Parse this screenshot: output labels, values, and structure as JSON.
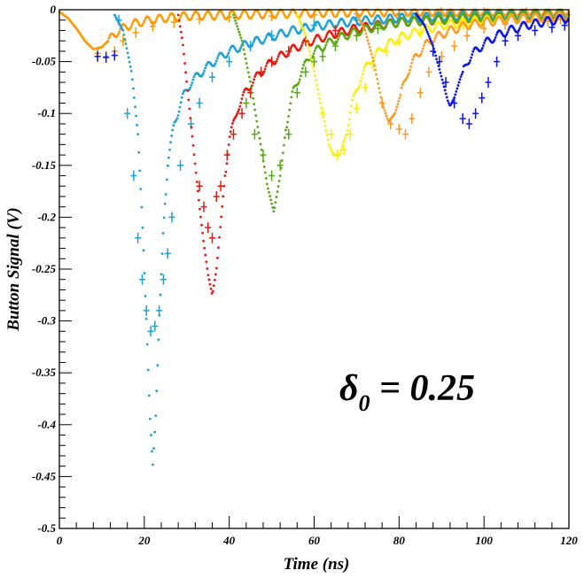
{
  "chart_data": {
    "type": "scatter",
    "title": "",
    "xlabel": "Time (ns)",
    "ylabel": "Button Signal (V)",
    "xlim": [
      0,
      120
    ],
    "ylim": [
      -0.5,
      0
    ],
    "x_ticks": [
      0,
      20,
      40,
      60,
      80,
      100,
      120
    ],
    "x_tick_labels": [
      "0",
      "20",
      "40",
      "60",
      "80",
      "100",
      "120"
    ],
    "y_ticks": [
      0,
      -0.05,
      -0.1,
      -0.15,
      -0.2,
      -0.25,
      -0.3,
      -0.35,
      -0.4,
      -0.45,
      -0.5
    ],
    "y_tick_labels": [
      "0",
      "-0.05",
      "-0.1",
      "-0.15",
      "-0.2",
      "-0.25",
      "-0.3",
      "-0.35",
      "-0.4",
      "-0.45",
      "-0.5"
    ],
    "grid": false,
    "legend": "none",
    "annotation": {
      "symbol": "δ",
      "subscript": "0",
      "text": " = 0.25"
    },
    "series": [
      {
        "color": "#ff9900",
        "peak_x": 8.5,
        "peak_y": -0.038,
        "start_x": 0,
        "curve": [
          [
            0,
            -0.002
          ],
          [
            2,
            -0.008
          ],
          [
            4,
            -0.018
          ],
          [
            6,
            -0.03
          ],
          [
            8,
            -0.038
          ],
          [
            10,
            -0.036
          ],
          [
            12,
            -0.028
          ],
          [
            14,
            -0.02
          ],
          [
            17,
            -0.014
          ],
          [
            20,
            -0.011
          ],
          [
            25,
            -0.008
          ],
          [
            30,
            -0.006
          ],
          [
            40,
            -0.005
          ],
          [
            50,
            -0.004
          ],
          [
            60,
            -0.003
          ],
          [
            80,
            -0.002
          ],
          [
            100,
            -0.002
          ],
          [
            120,
            -0.001
          ]
        ],
        "measured": [
          [
            9,
            -0.042
          ],
          [
            11,
            -0.045
          ],
          [
            13,
            -0.04
          ],
          [
            15,
            -0.03
          ],
          [
            18,
            -0.022
          ],
          [
            22,
            -0.016
          ],
          [
            27,
            -0.012
          ],
          [
            33,
            -0.009
          ],
          [
            40,
            -0.007
          ],
          [
            50,
            -0.006
          ],
          [
            60,
            -0.005
          ],
          [
            70,
            -0.004
          ],
          [
            80,
            -0.004
          ],
          [
            90,
            -0.003
          ],
          [
            100,
            -0.003
          ],
          [
            110,
            -0.003
          ],
          [
            118,
            -0.004
          ]
        ]
      },
      {
        "color": "#1ba1d6",
        "peak_x": 22,
        "peak_y": -0.44,
        "start_x": 13,
        "curve": [
          [
            13,
            -0.005
          ],
          [
            15,
            -0.02
          ],
          [
            17,
            -0.06
          ],
          [
            18.5,
            -0.12
          ],
          [
            19.5,
            -0.2
          ],
          [
            20.5,
            -0.3
          ],
          [
            21.3,
            -0.39
          ],
          [
            22,
            -0.44
          ],
          [
            22.7,
            -0.39
          ],
          [
            23.5,
            -0.3
          ],
          [
            24.5,
            -0.21
          ],
          [
            25.5,
            -0.15
          ],
          [
            27,
            -0.11
          ],
          [
            29,
            -0.085
          ],
          [
            31,
            -0.07
          ],
          [
            34,
            -0.058
          ],
          [
            37,
            -0.048
          ],
          [
            40,
            -0.04
          ],
          [
            45,
            -0.032
          ],
          [
            50,
            -0.026
          ],
          [
            55,
            -0.02
          ],
          [
            60,
            -0.016
          ],
          [
            70,
            -0.011
          ],
          [
            80,
            -0.008
          ],
          [
            100,
            -0.005
          ],
          [
            120,
            -0.004
          ]
        ],
        "measured": [
          [
            14,
            -0.01
          ],
          [
            16,
            -0.1
          ],
          [
            17.5,
            -0.16
          ],
          [
            18.5,
            -0.22
          ],
          [
            19.5,
            -0.26
          ],
          [
            20.5,
            -0.29
          ],
          [
            21.5,
            -0.31
          ],
          [
            22.5,
            -0.305
          ],
          [
            23.5,
            -0.29
          ],
          [
            24.5,
            -0.26
          ],
          [
            25.5,
            -0.235
          ],
          [
            26.5,
            -0.2
          ],
          [
            28.5,
            -0.15
          ],
          [
            31,
            -0.11
          ],
          [
            33,
            -0.09
          ],
          [
            36,
            -0.065
          ],
          [
            40,
            -0.05
          ],
          [
            45,
            -0.035
          ],
          [
            50,
            -0.025
          ],
          [
            60,
            -0.015
          ],
          [
            70,
            -0.01
          ],
          [
            80,
            -0.008
          ]
        ]
      },
      {
        "color": "#e8170c",
        "peak_x": 36,
        "peak_y": -0.275,
        "start_x": 28,
        "curve": [
          [
            28,
            -0.005
          ],
          [
            29,
            -0.03
          ],
          [
            30,
            -0.07
          ],
          [
            31,
            -0.11
          ],
          [
            32,
            -0.15
          ],
          [
            33,
            -0.19
          ],
          [
            34,
            -0.225
          ],
          [
            35,
            -0.255
          ],
          [
            36,
            -0.275
          ],
          [
            37,
            -0.25
          ],
          [
            38,
            -0.205
          ],
          [
            39,
            -0.16
          ],
          [
            40,
            -0.125
          ],
          [
            42,
            -0.095
          ],
          [
            44,
            -0.078
          ],
          [
            47,
            -0.062
          ],
          [
            50,
            -0.05
          ],
          [
            54,
            -0.04
          ],
          [
            58,
            -0.032
          ],
          [
            64,
            -0.024
          ],
          [
            70,
            -0.018
          ],
          [
            80,
            -0.012
          ],
          [
            100,
            -0.007
          ],
          [
            120,
            -0.005
          ]
        ],
        "measured": [
          [
            33,
            -0.17
          ],
          [
            34,
            -0.19
          ],
          [
            35,
            -0.21
          ],
          [
            36,
            -0.22
          ],
          [
            37,
            -0.18
          ],
          [
            38,
            -0.17
          ],
          [
            39.5,
            -0.14
          ],
          [
            41,
            -0.12
          ],
          [
            43,
            -0.1
          ],
          [
            45,
            -0.08
          ],
          [
            47.5,
            -0.06
          ],
          [
            50,
            -0.05
          ],
          [
            54,
            -0.04
          ],
          [
            58,
            -0.03
          ],
          [
            65,
            -0.02
          ],
          [
            75,
            -0.015
          ]
        ]
      },
      {
        "color": "#55aa11",
        "peak_x": 50.5,
        "peak_y": -0.195,
        "start_x": 41,
        "curve": [
          [
            41,
            -0.005
          ],
          [
            43,
            -0.03
          ],
          [
            45,
            -0.07
          ],
          [
            47,
            -0.12
          ],
          [
            49,
            -0.17
          ],
          [
            50.5,
            -0.195
          ],
          [
            52,
            -0.16
          ],
          [
            53.5,
            -0.11
          ],
          [
            55,
            -0.08
          ],
          [
            57,
            -0.06
          ],
          [
            59,
            -0.045
          ],
          [
            61,
            -0.038
          ],
          [
            63,
            -0.033
          ],
          [
            66,
            -0.027
          ],
          [
            70,
            -0.021
          ],
          [
            75,
            -0.016
          ],
          [
            80,
            -0.012
          ],
          [
            90,
            -0.009
          ],
          [
            100,
            -0.007
          ],
          [
            120,
            -0.005
          ]
        ],
        "measured": [
          [
            44,
            -0.09
          ],
          [
            46,
            -0.12
          ],
          [
            48,
            -0.14
          ],
          [
            50,
            -0.16
          ],
          [
            52,
            -0.15
          ],
          [
            54,
            -0.12
          ],
          [
            56,
            -0.08
          ],
          [
            58,
            -0.06
          ],
          [
            60,
            -0.05
          ],
          [
            62,
            -0.045
          ],
          [
            65,
            -0.035
          ],
          [
            70,
            -0.025
          ],
          [
            75,
            -0.018
          ]
        ]
      },
      {
        "color": "#ffee00",
        "peak_x": 64.5,
        "peak_y": -0.14,
        "start_x": 56,
        "curve": [
          [
            56,
            -0.005
          ],
          [
            58,
            -0.025
          ],
          [
            60,
            -0.06
          ],
          [
            62,
            -0.1
          ],
          [
            63.5,
            -0.13
          ],
          [
            64.5,
            -0.14
          ],
          [
            66,
            -0.14
          ],
          [
            67.5,
            -0.12
          ],
          [
            69,
            -0.09
          ],
          [
            71,
            -0.065
          ],
          [
            73,
            -0.05
          ],
          [
            76,
            -0.037
          ],
          [
            80,
            -0.027
          ],
          [
            85,
            -0.02
          ],
          [
            90,
            -0.015
          ],
          [
            100,
            -0.01
          ],
          [
            120,
            -0.006
          ]
        ],
        "measured": [
          [
            62,
            -0.1
          ],
          [
            64,
            -0.12
          ],
          [
            65.5,
            -0.14
          ],
          [
            67,
            -0.135
          ],
          [
            68.5,
            -0.12
          ],
          [
            70,
            -0.095
          ],
          [
            72,
            -0.075
          ],
          [
            74,
            -0.055
          ],
          [
            77,
            -0.04
          ],
          [
            80,
            -0.03
          ],
          [
            85,
            -0.022
          ],
          [
            95,
            -0.014
          ]
        ]
      },
      {
        "color": "#ff9922",
        "peak_x": 77.5,
        "peak_y": -0.108,
        "start_x": 70,
        "curve": [
          [
            70,
            -0.004
          ],
          [
            72,
            -0.02
          ],
          [
            74,
            -0.05
          ],
          [
            76,
            -0.09
          ],
          [
            77.5,
            -0.108
          ],
          [
            79,
            -0.1
          ],
          [
            80.5,
            -0.08
          ],
          [
            82,
            -0.06
          ],
          [
            84,
            -0.045
          ],
          [
            86,
            -0.035
          ],
          [
            88,
            -0.028
          ],
          [
            92,
            -0.02
          ],
          [
            96,
            -0.015
          ],
          [
            100,
            -0.012
          ],
          [
            110,
            -0.008
          ],
          [
            120,
            -0.006
          ]
        ],
        "measured": [
          [
            76,
            -0.09
          ],
          [
            78,
            -0.11
          ],
          [
            80,
            -0.115
          ],
          [
            81.5,
            -0.12
          ],
          [
            83,
            -0.105
          ],
          [
            85,
            -0.08
          ],
          [
            87,
            -0.06
          ],
          [
            90,
            -0.045
          ],
          [
            93,
            -0.035
          ],
          [
            96,
            -0.025
          ],
          [
            100,
            -0.018
          ],
          [
            105,
            -0.014
          ],
          [
            110,
            -0.012
          ],
          [
            115,
            -0.011
          ],
          [
            118,
            -0.009
          ]
        ]
      },
      {
        "color": "#0a14e6",
        "peak_x": 92,
        "peak_y": -0.093,
        "start_x": 84,
        "curve": [
          [
            84,
            -0.004
          ],
          [
            86,
            -0.015
          ],
          [
            88,
            -0.035
          ],
          [
            90,
            -0.065
          ],
          [
            91.5,
            -0.088
          ],
          [
            92,
            -0.093
          ],
          [
            93,
            -0.085
          ],
          [
            94.5,
            -0.065
          ],
          [
            96,
            -0.05
          ],
          [
            98,
            -0.04
          ],
          [
            100,
            -0.033
          ],
          [
            103,
            -0.025
          ],
          [
            106,
            -0.02
          ],
          [
            110,
            -0.015
          ],
          [
            115,
            -0.011
          ],
          [
            120,
            -0.008
          ]
        ],
        "measured": [
          [
            9,
            -0.045
          ],
          [
            11,
            -0.046
          ],
          [
            13,
            -0.044
          ],
          [
            88,
            -0.04
          ],
          [
            89.5,
            -0.05
          ],
          [
            91,
            -0.07
          ],
          [
            93,
            -0.09
          ],
          [
            95,
            -0.105
          ],
          [
            96.5,
            -0.11
          ],
          [
            98,
            -0.1
          ],
          [
            99.5,
            -0.085
          ],
          [
            101,
            -0.07
          ],
          [
            103,
            -0.05
          ],
          [
            105,
            -0.03
          ],
          [
            108,
            -0.025
          ],
          [
            112,
            -0.02
          ],
          [
            116,
            -0.017
          ],
          [
            119,
            -0.015
          ]
        ]
      }
    ]
  }
}
